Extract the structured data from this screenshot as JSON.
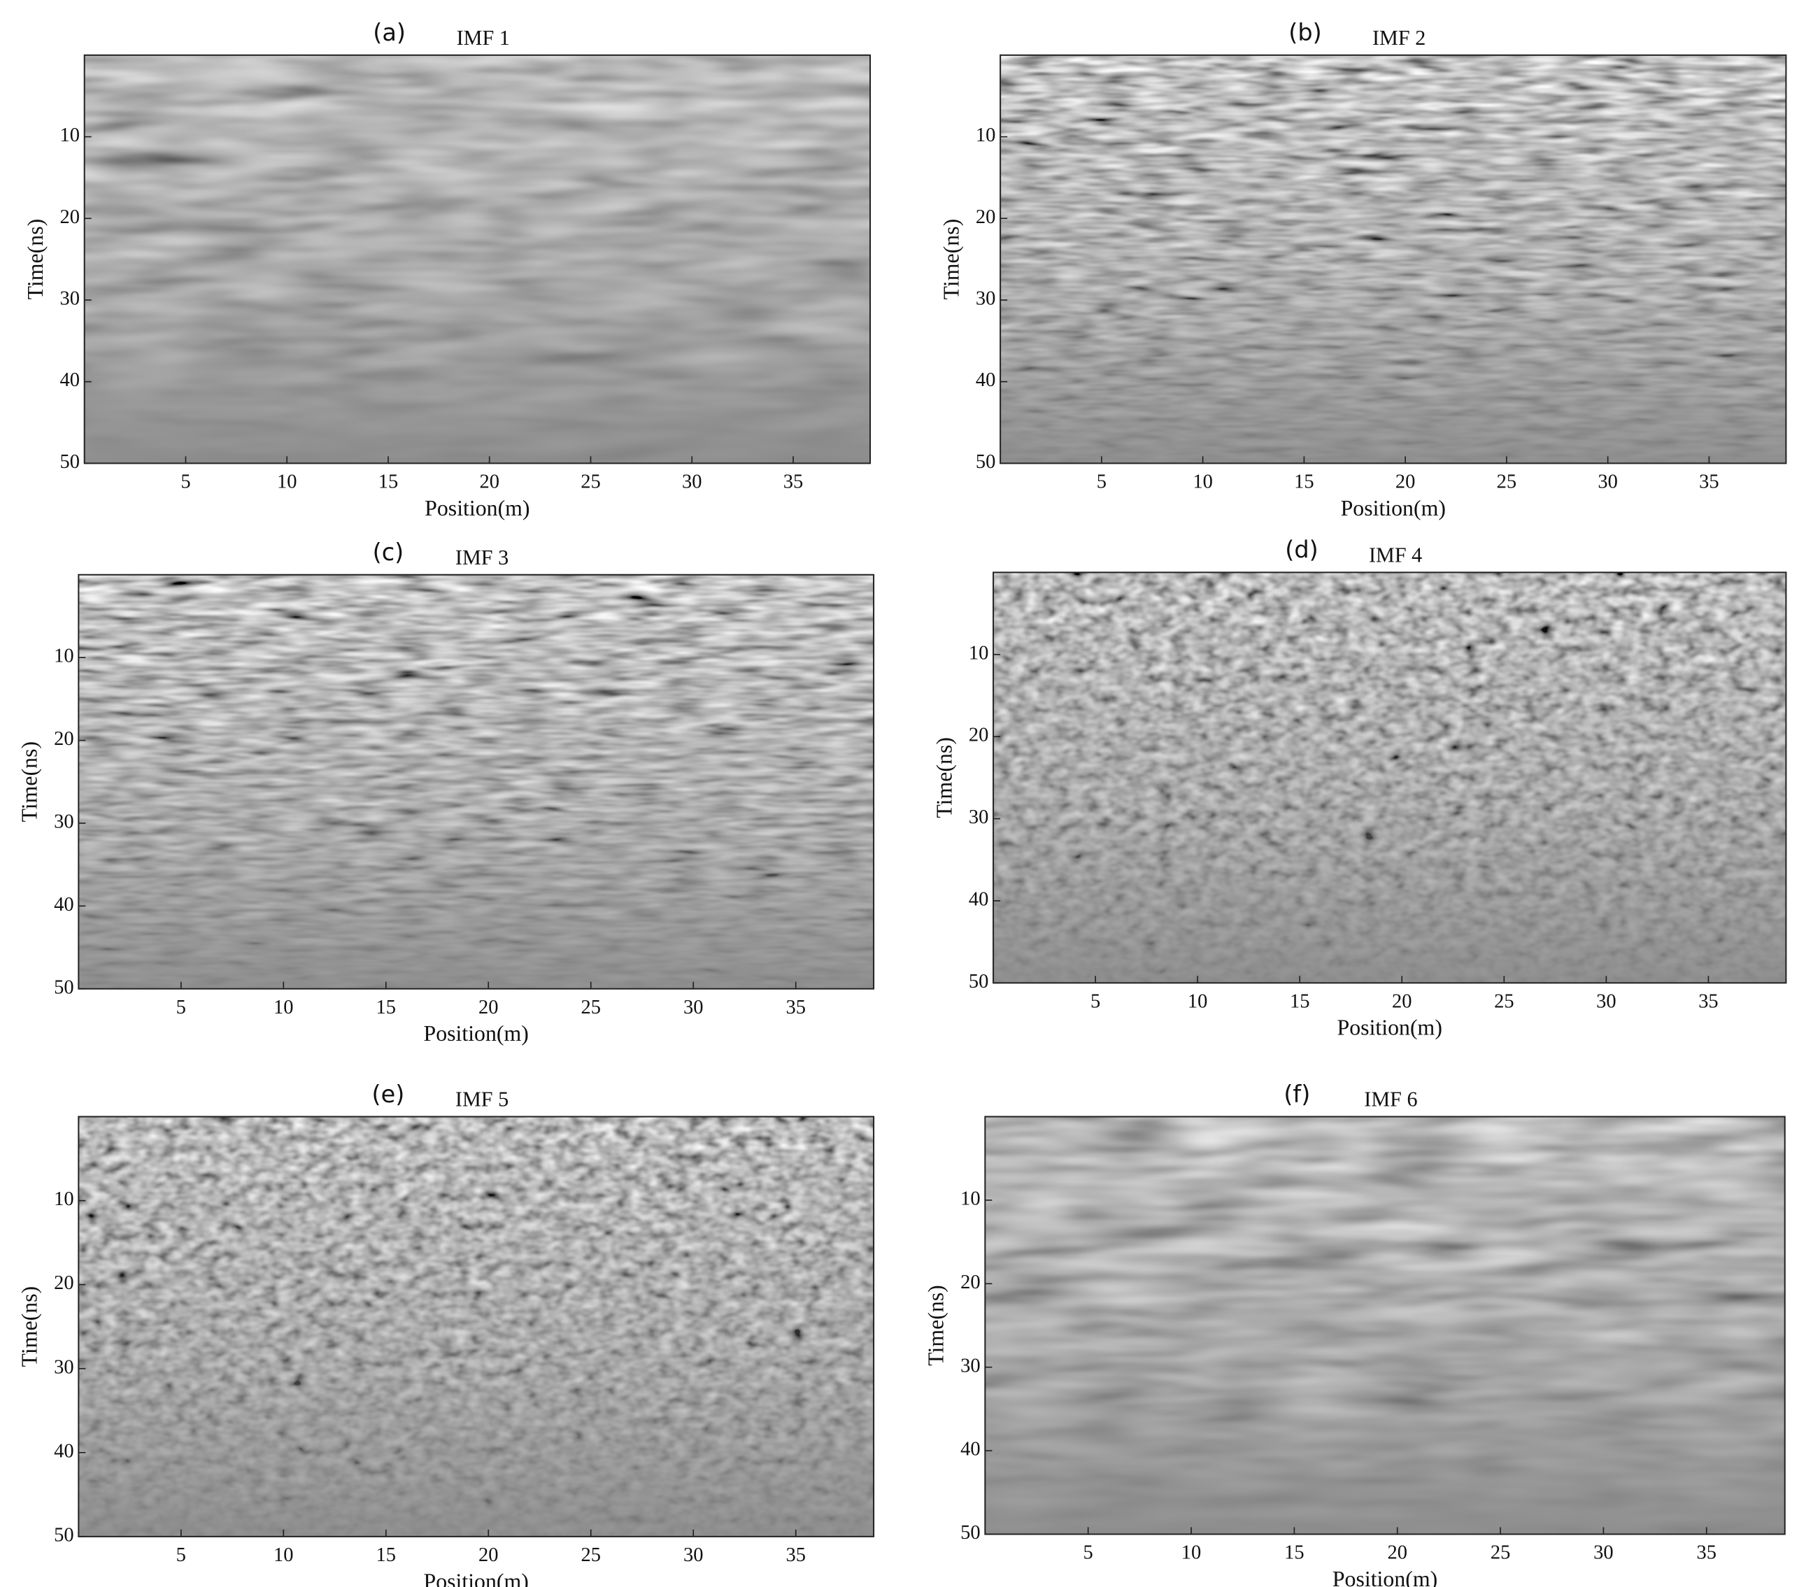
{
  "chart_data": [
    {
      "type": "image",
      "label": "(a)",
      "title": "IMF 1",
      "xlabel": "Position(m)",
      "ylabel": "Time(ns)",
      "xlim": [
        0,
        38.8
      ],
      "ylim": [
        0,
        50
      ],
      "y_reversed": true,
      "xticks": [
        5,
        10,
        15,
        20,
        25,
        30,
        35
      ],
      "yticks": [
        10,
        20,
        30,
        40,
        50
      ]
    },
    {
      "type": "image",
      "label": "(b)",
      "title": "IMF 2",
      "xlabel": "Position(m)",
      "ylabel": "Time(ns)",
      "xlim": [
        0,
        38.8
      ],
      "ylim": [
        0,
        50
      ],
      "y_reversed": true,
      "xticks": [
        5,
        10,
        15,
        20,
        25,
        30,
        35
      ],
      "yticks": [
        10,
        20,
        30,
        40,
        50
      ]
    },
    {
      "type": "image",
      "label": "(c)",
      "title": "IMF 3",
      "xlabel": "Position(m)",
      "ylabel": "Time(ns)",
      "xlim": [
        0,
        38.8
      ],
      "ylim": [
        0,
        50
      ],
      "y_reversed": true,
      "xticks": [
        5,
        10,
        15,
        20,
        25,
        30,
        35
      ],
      "yticks": [
        10,
        20,
        30,
        40,
        50
      ]
    },
    {
      "type": "image",
      "label": "(d)",
      "title": "IMF 4",
      "xlabel": "Position(m)",
      "ylabel": "Time(ns)",
      "xlim": [
        0,
        38.8
      ],
      "ylim": [
        0,
        50
      ],
      "y_reversed": true,
      "xticks": [
        5,
        10,
        15,
        20,
        25,
        30,
        35
      ],
      "yticks": [
        10,
        20,
        30,
        40,
        50
      ]
    },
    {
      "type": "image",
      "label": "(e)",
      "title": "IMF 5",
      "xlabel": "Position(m)",
      "ylabel": "Time(ns)",
      "xlim": [
        0,
        38.8
      ],
      "ylim": [
        0,
        50
      ],
      "y_reversed": true,
      "xticks": [
        5,
        10,
        15,
        20,
        25,
        30,
        35
      ],
      "yticks": [
        10,
        20,
        30,
        40,
        50
      ]
    },
    {
      "type": "image",
      "label": "(f)",
      "title": "IMF 6",
      "xlabel": "Position(m)",
      "ylabel": "Time(ns)",
      "xlim": [
        0,
        38.8
      ],
      "ylim": [
        0,
        50
      ],
      "y_reversed": true,
      "xticks": [
        5,
        10,
        15,
        20,
        25,
        30,
        35
      ],
      "yticks": [
        10,
        20,
        30,
        40,
        50
      ]
    }
  ]
}
